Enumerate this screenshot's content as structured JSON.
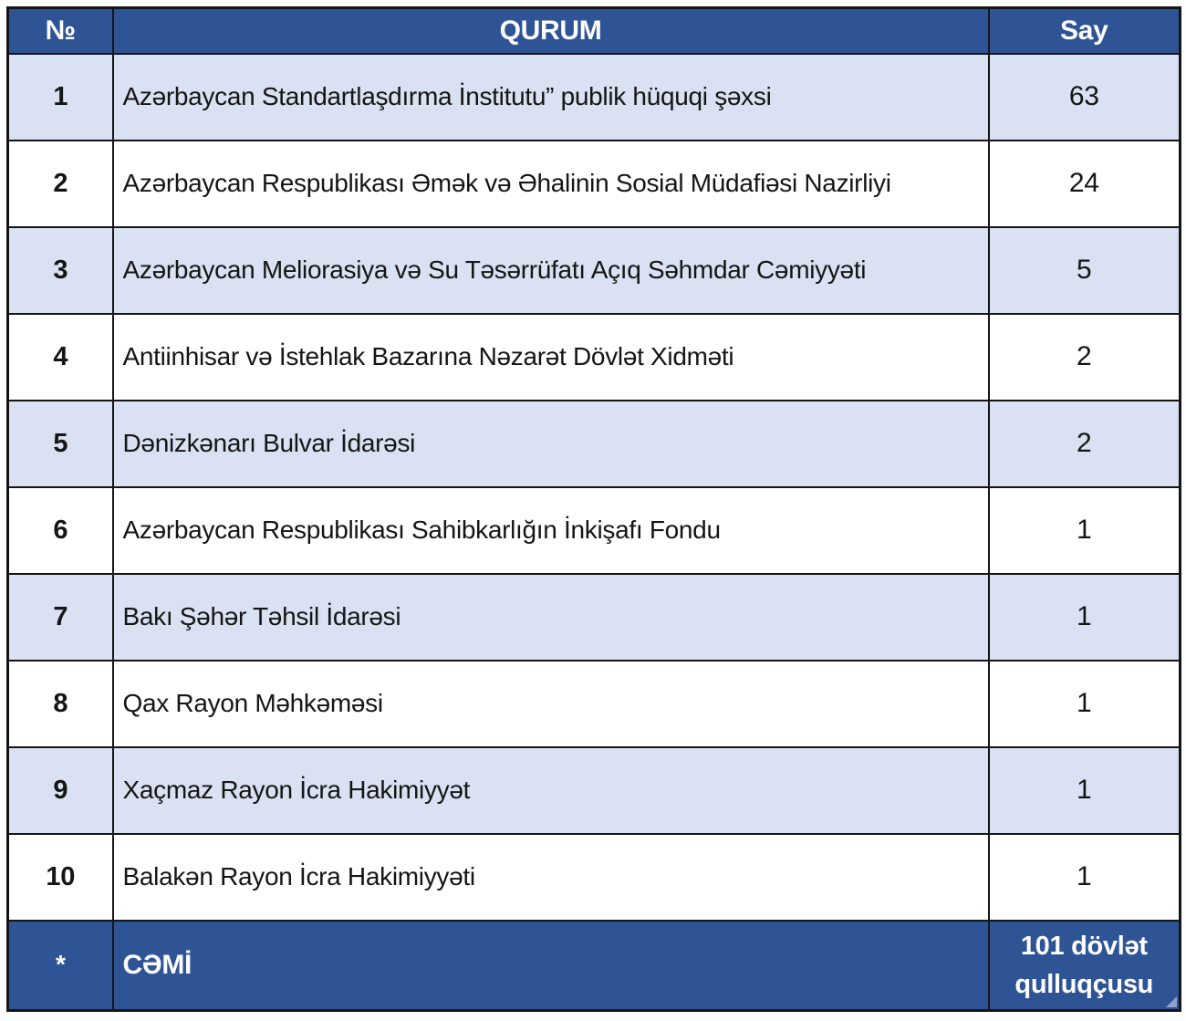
{
  "table": {
    "columns": [
      {
        "key": "no",
        "label": "№"
      },
      {
        "key": "qurum",
        "label": "QURUM"
      },
      {
        "key": "say",
        "label": "Say"
      }
    ],
    "rows": [
      {
        "no": "1",
        "qurum": "Azərbaycan Standartlaşdırma İnstitutu” publik hüquqi şəxsi",
        "say": "63"
      },
      {
        "no": "2",
        "qurum": "Azərbaycan Respublikası Əmək və Əhalinin Sosial Müdafiəsi Nazirliyi",
        "say": "24"
      },
      {
        "no": "3",
        "qurum": "Azərbaycan Meliorasiya və Su Təsərrüfatı Açıq Səhmdar Cəmiyyəti",
        "say": "5"
      },
      {
        "no": "4",
        "qurum": "Antiinhisar və İstehlak Bazarına Nəzarət Dövlət Xidməti",
        "say": "2"
      },
      {
        "no": "5",
        "qurum": "Dənizkənarı Bulvar İdarəsi",
        "say": "2"
      },
      {
        "no": "6",
        "qurum": "Azərbaycan Respublikası Sahibkarlığın İnkişafı Fondu",
        "say": "1"
      },
      {
        "no": "7",
        "qurum": "Bakı Şəhər Təhsil İdarəsi",
        "say": "1"
      },
      {
        "no": "8",
        "qurum": "Qax Rayon Məhkəməsi",
        "say": "1"
      },
      {
        "no": "9",
        "qurum": "Xaçmaz Rayon İcra Hakimiyyət",
        "say": "1"
      },
      {
        "no": "10",
        "qurum": "Balakən Rayon İcra Hakimiyyəti",
        "say": "1"
      }
    ],
    "footer": {
      "no": "*",
      "qurum": "CƏMİ",
      "say": "101 dövlət qulluqçusu"
    },
    "colors": {
      "header_bg": "#2E5496",
      "row_alt_bg": "#D9E1F2",
      "row_bg": "#FFFFFF",
      "border": "#151515",
      "header_text": "#FFFFFF",
      "body_text": "#151515"
    }
  }
}
